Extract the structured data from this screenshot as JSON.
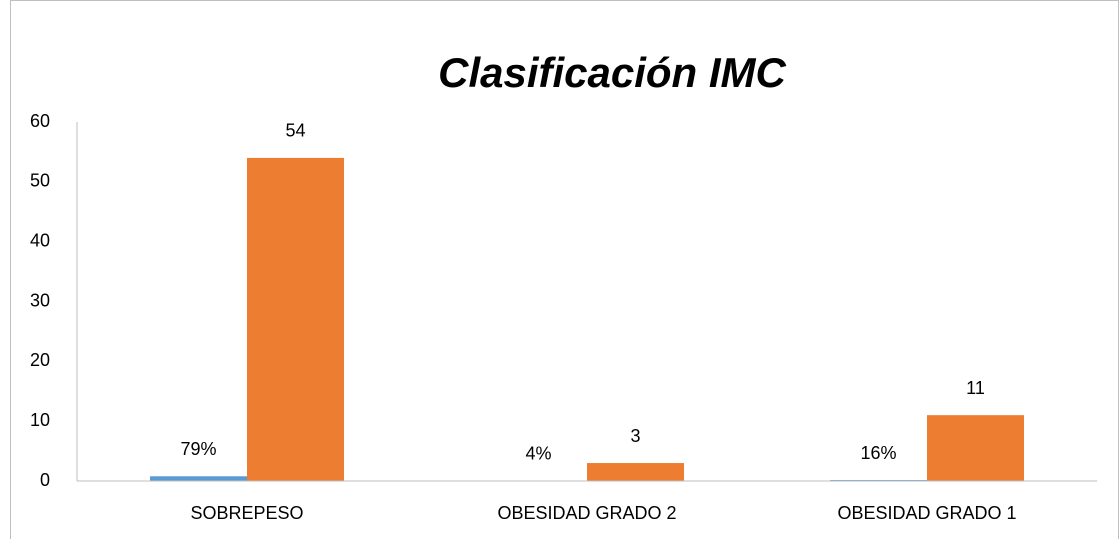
{
  "chart_data": {
    "type": "bar",
    "title": "Clasificación IMC",
    "categories": [
      "SOBREPESO",
      "OBESIDAD GRADO 2",
      "OBESIDAD GRADO 1"
    ],
    "series": [
      {
        "color": "#5b9bd5",
        "values": [
          0.79,
          0.04,
          0.16
        ],
        "value_labels": [
          "79%",
          "4%",
          "16%"
        ]
      },
      {
        "color": "#ed7d31",
        "values": [
          54,
          3,
          11
        ]
      }
    ],
    "ylim": [
      0,
      60
    ],
    "yticks": [
      0,
      10,
      20,
      30,
      40,
      50,
      60
    ],
    "grid": false
  }
}
